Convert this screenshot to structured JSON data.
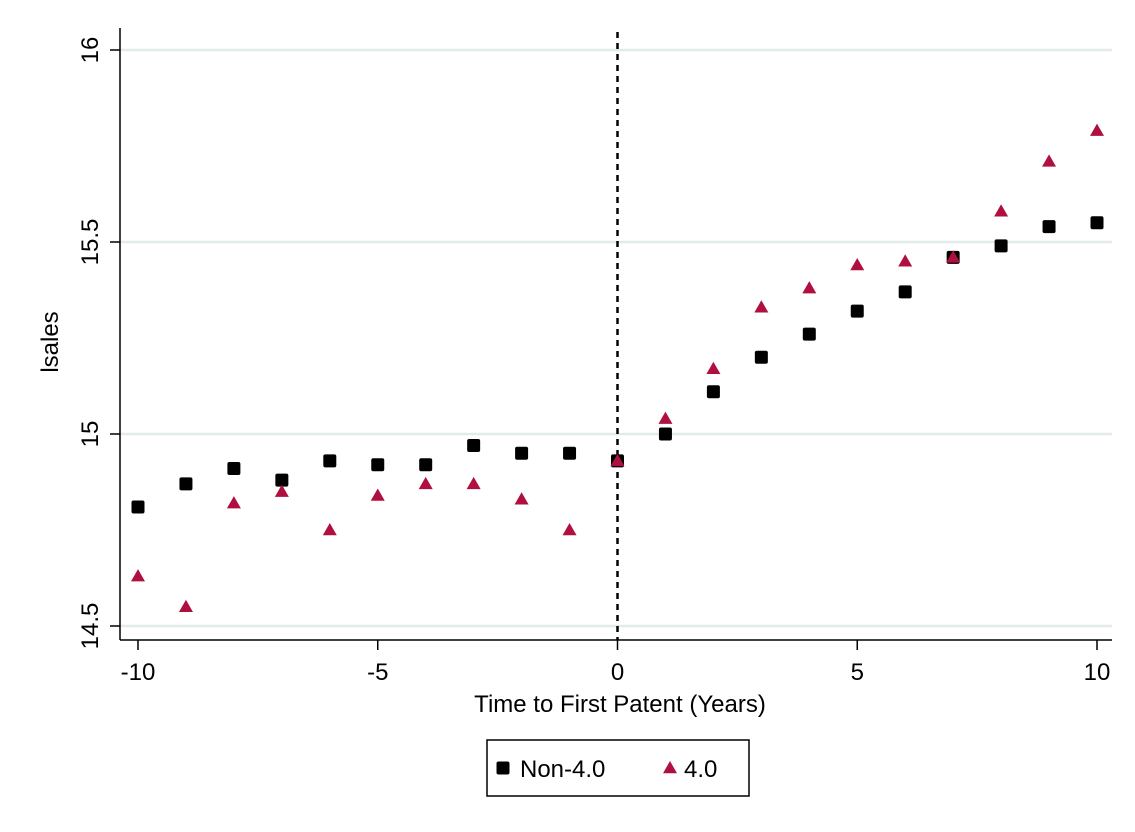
{
  "chart_data": {
    "type": "scatter",
    "xlabel": "Time to First Patent (Years)",
    "ylabel": "lsales",
    "xlim": [
      -10,
      10
    ],
    "ylim": [
      14.5,
      16
    ],
    "xticks": [
      -10,
      -5,
      0,
      5,
      10
    ],
    "yticks": [
      14.5,
      15,
      15.5,
      16
    ],
    "xtick_labels": [
      "-10",
      "-5",
      "0",
      "5",
      "10"
    ],
    "ytick_labels": [
      "14.5",
      "15",
      "15.5",
      "16"
    ],
    "grid": "horizontal",
    "reference_line": {
      "x": 0,
      "style": "dashed",
      "color": "#000000"
    },
    "legend_position": "bottom-center",
    "x": [
      -10,
      -9,
      -8,
      -7,
      -6,
      -5,
      -4,
      -3,
      -2,
      -1,
      0,
      1,
      2,
      3,
      4,
      5,
      6,
      7,
      8,
      9,
      10
    ],
    "series": [
      {
        "name": "Non-4.0",
        "marker": "square",
        "color": "#000000",
        "values": [
          14.81,
          14.87,
          14.91,
          14.88,
          14.93,
          14.92,
          14.92,
          14.97,
          14.95,
          14.95,
          14.93,
          15.0,
          15.11,
          15.2,
          15.26,
          15.32,
          15.37,
          15.46,
          15.49,
          15.54,
          15.55
        ]
      },
      {
        "name": "4.0",
        "marker": "triangle",
        "color": "#b01040",
        "values": [
          14.63,
          14.55,
          14.82,
          14.85,
          14.75,
          14.84,
          14.87,
          14.87,
          14.83,
          14.75,
          14.93,
          15.04,
          15.17,
          15.33,
          15.38,
          15.44,
          15.45,
          15.46,
          15.58,
          15.71,
          15.79
        ]
      }
    ]
  }
}
